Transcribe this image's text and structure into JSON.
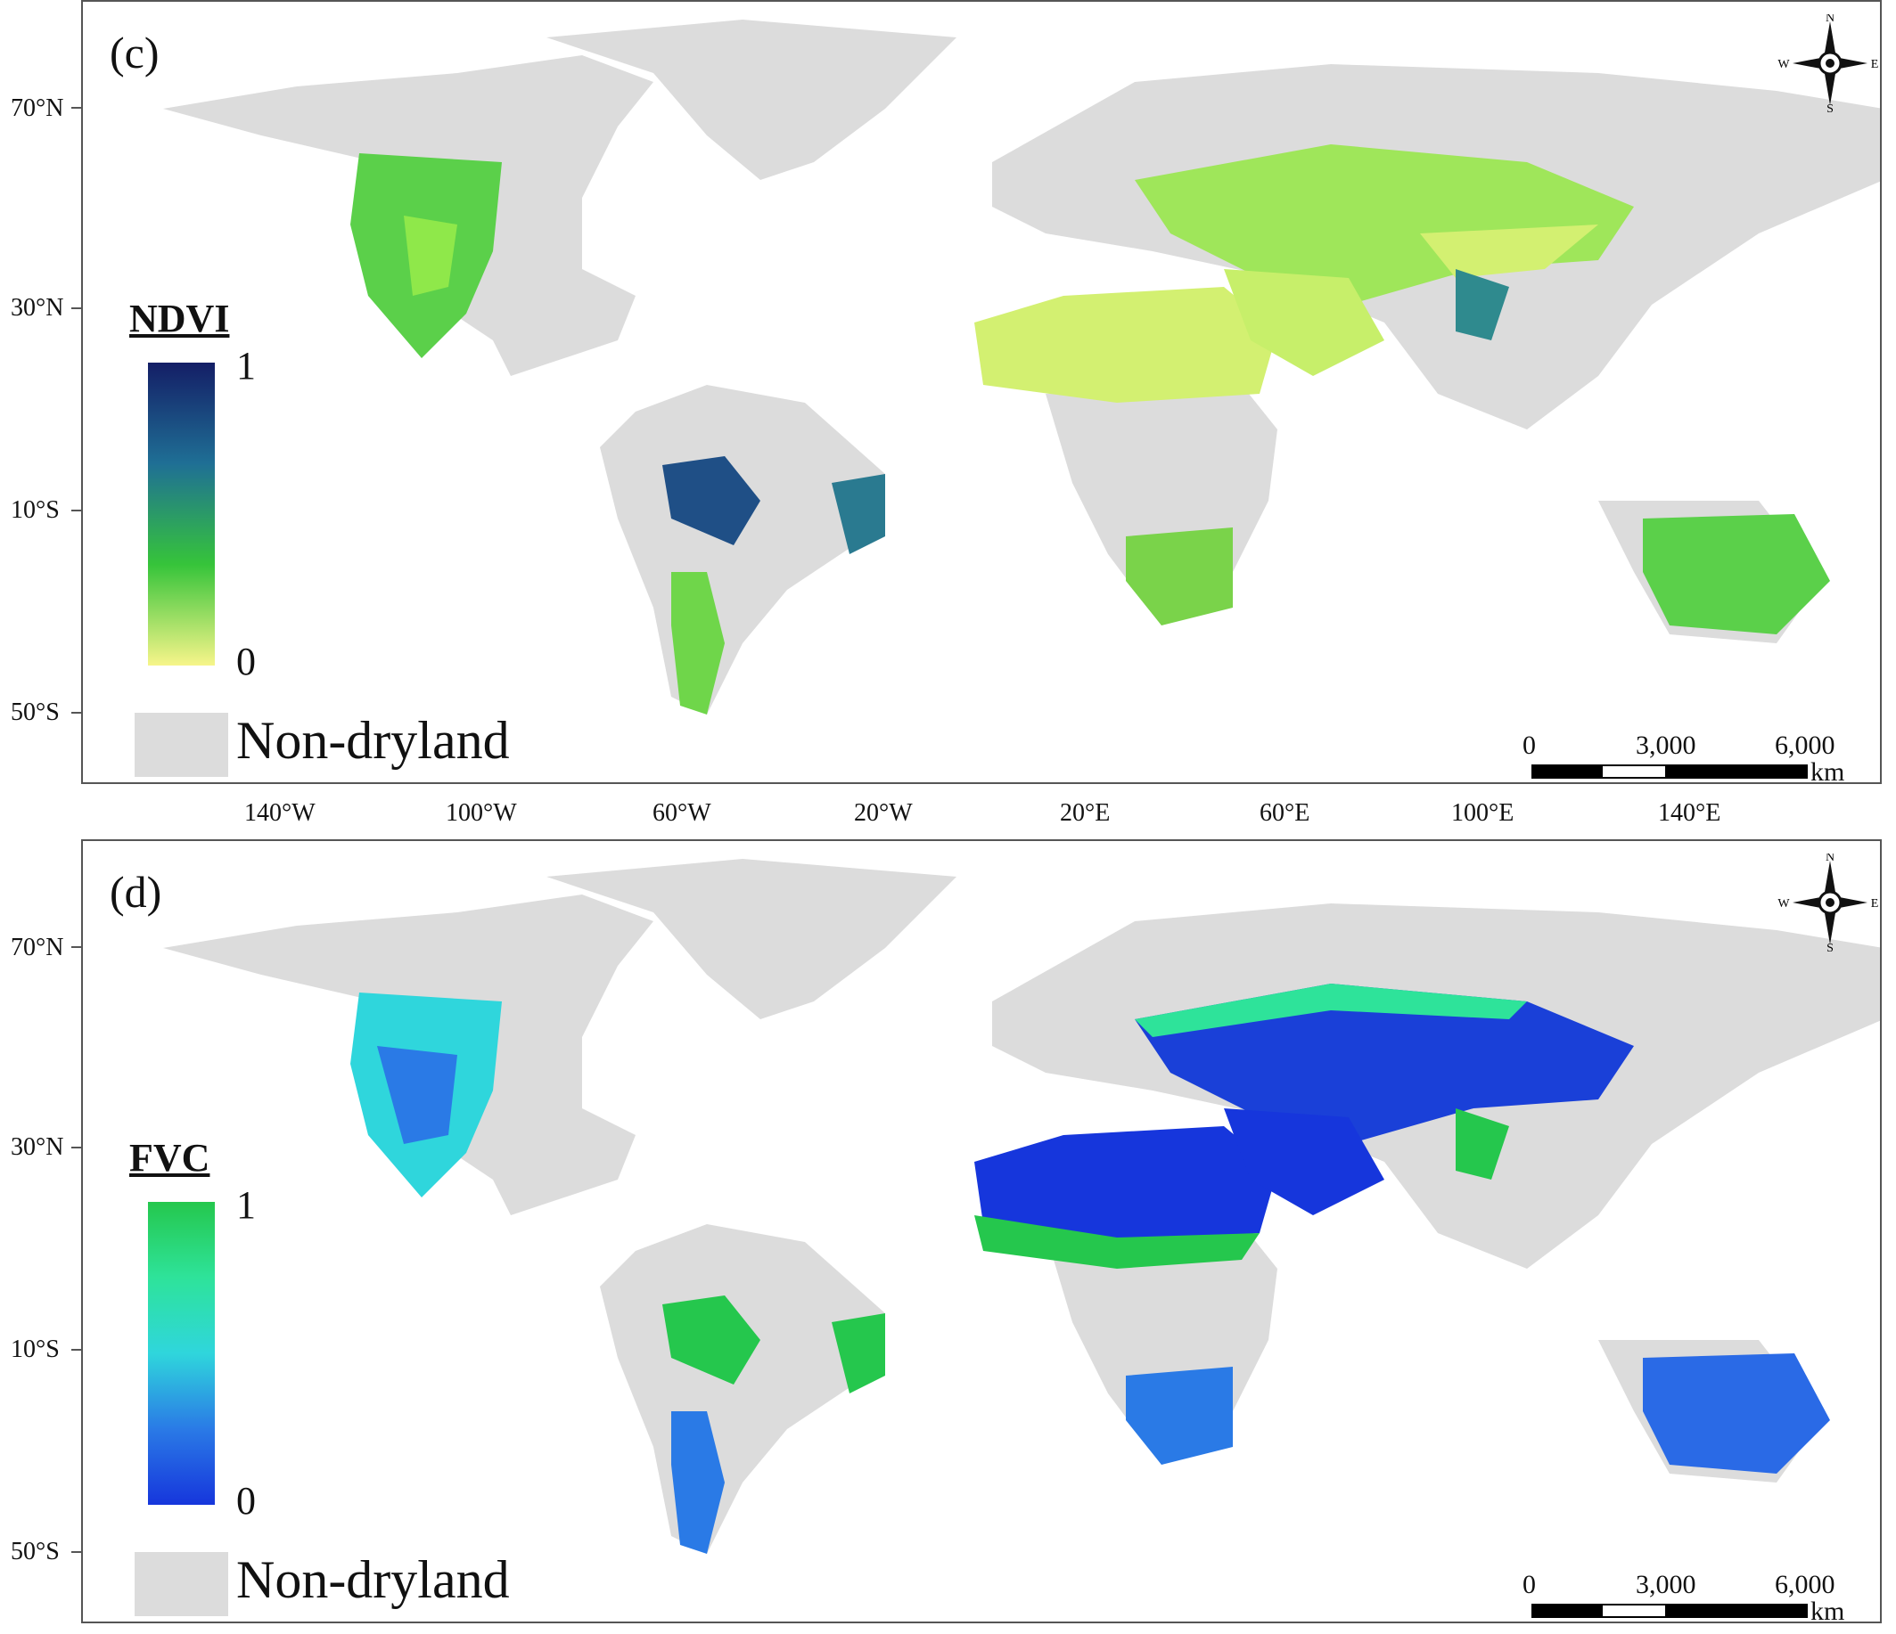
{
  "axes": {
    "latitude_ticks": [
      "70°N",
      "30°N",
      "10°S",
      "50°S"
    ],
    "longitude_ticks": [
      "140°W",
      "100°W",
      "60°W",
      "20°W",
      "20°E",
      "60°E",
      "100°E",
      "140°E"
    ]
  },
  "panels": [
    {
      "label": "(c)",
      "legend": {
        "title": "NDVI",
        "max": "1",
        "min": "0",
        "colors": [
          "#f7f58a",
          "#8fe84a",
          "#36c43a",
          "#2aa6a0",
          "#1f5f95",
          "#141e66"
        ]
      },
      "non_dryland_label": "Non-dryland"
    },
    {
      "label": "(d)",
      "legend": {
        "title": "FVC",
        "max": "1",
        "min": "0",
        "colors": [
          "#1636dc",
          "#2a7ae6",
          "#2fd6dc",
          "#2ee39a",
          "#25c74d"
        ]
      },
      "non_dryland_label": "Non-dryland"
    }
  ],
  "compass": {
    "n": "N",
    "s": "S",
    "e": "E",
    "w": "W"
  },
  "scale_bar": {
    "labels": [
      "0",
      "3,000",
      "6,000"
    ],
    "unit": "km"
  },
  "colors": {
    "non_dryland": "#dcdcdc"
  }
}
